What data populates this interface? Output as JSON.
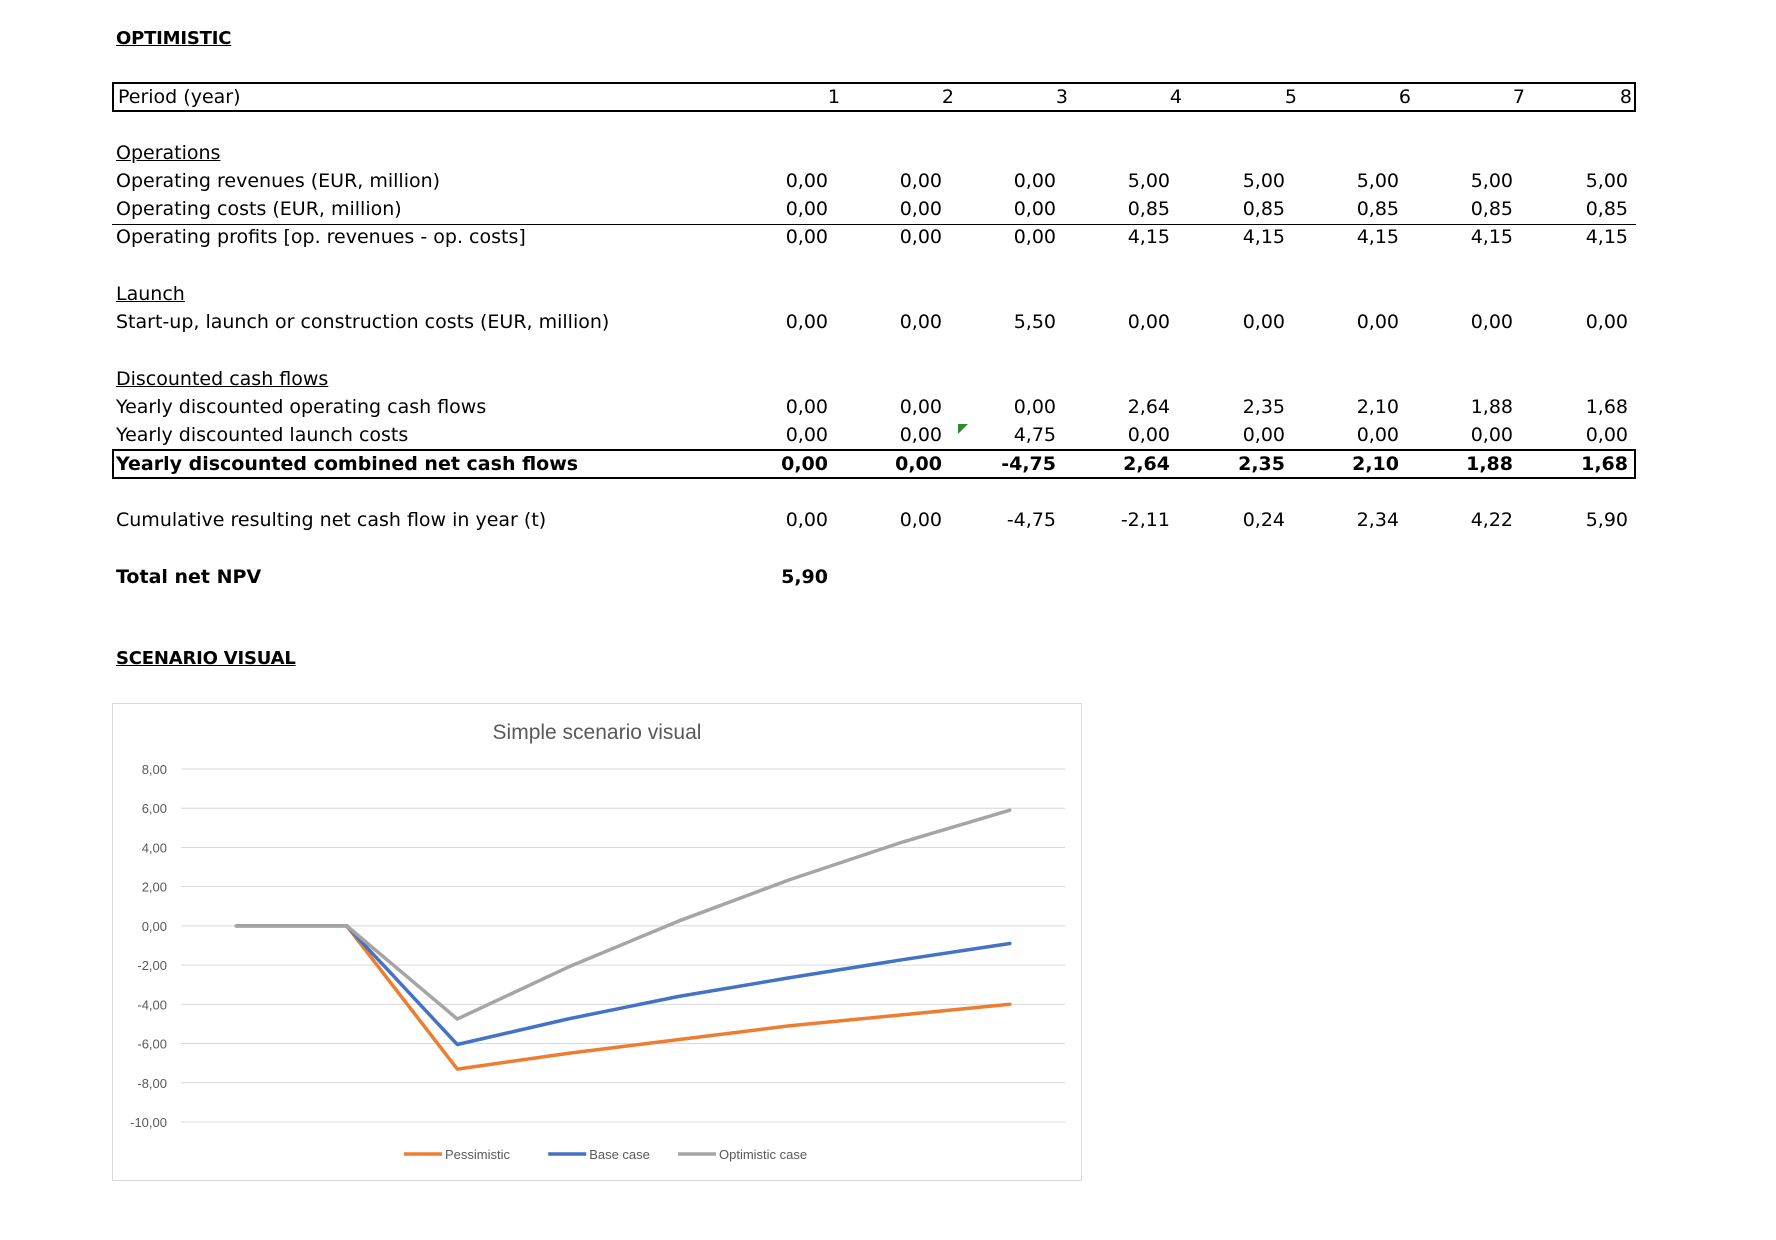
{
  "heading": "OPTIMISTIC",
  "period_row": {
    "label": "Period (year)",
    "values": [
      "1",
      "2",
      "3",
      "4",
      "5",
      "6",
      "7",
      "8"
    ]
  },
  "sections": {
    "operations": {
      "title": "Operations",
      "rows": [
        {
          "label": "Operating revenues (EUR, million)",
          "values": [
            "0,00",
            "0,00",
            "0,00",
            "5,00",
            "5,00",
            "5,00",
            "5,00",
            "5,00"
          ]
        },
        {
          "label": "Operating costs (EUR, million)",
          "values": [
            "0,00",
            "0,00",
            "0,00",
            "0,85",
            "0,85",
            "0,85",
            "0,85",
            "0,85"
          ]
        },
        {
          "label": "Operating profits [op. revenues - op. costs]",
          "values": [
            "0,00",
            "0,00",
            "0,00",
            "4,15",
            "4,15",
            "4,15",
            "4,15",
            "4,15"
          ]
        }
      ]
    },
    "launch": {
      "title": "Launch",
      "rows": [
        {
          "label": "Start-up, launch or construction costs (EUR, million)",
          "values": [
            "0,00",
            "0,00",
            "5,50",
            "0,00",
            "0,00",
            "0,00",
            "0,00",
            "0,00"
          ]
        }
      ]
    },
    "dcf": {
      "title": "Discounted cash flows",
      "rows": [
        {
          "label": "Yearly discounted operating cash flows",
          "values": [
            "0,00",
            "0,00",
            "0,00",
            "2,64",
            "2,35",
            "2,10",
            "1,88",
            "1,68"
          ]
        },
        {
          "label": "Yearly discounted launch costs",
          "values": [
            "0,00",
            "0,00",
            "4,75",
            "0,00",
            "0,00",
            "0,00",
            "0,00",
            "0,00"
          ]
        },
        {
          "label": "Yearly discounted combined net cash flows",
          "values": [
            "0,00",
            "0,00",
            "-4,75",
            "2,64",
            "2,35",
            "2,10",
            "1,88",
            "1,68"
          ]
        }
      ]
    },
    "cumulative": {
      "label": "Cumulative resulting net cash flow in year (t)",
      "values": [
        "0,00",
        "0,00",
        "-4,75",
        "-2,11",
        "0,24",
        "2,34",
        "4,22",
        "5,90"
      ]
    },
    "npv": {
      "label": "Total net NPV",
      "value": "5,90"
    }
  },
  "scenario_heading": "SCENARIO VISUAL",
  "colors": {
    "pessimistic": "#ed7d31",
    "base": "#4472c4",
    "optimistic": "#a5a5a5",
    "grid": "#d9d9d9",
    "comment_flag": "#2e8b2e"
  },
  "chart_data": {
    "type": "line",
    "title": "Simple scenario visual",
    "x": [
      1,
      2,
      3,
      4,
      5,
      6,
      7,
      8
    ],
    "ylim": [
      -10,
      8
    ],
    "yticks": [
      "8,00",
      "6,00",
      "4,00",
      "2,00",
      "0,00",
      "-2,00",
      "-4,00",
      "-6,00",
      "-8,00",
      "-10,00"
    ],
    "grid": true,
    "legend": "bottom",
    "series": [
      {
        "name": "Pessimistic",
        "color": "#ed7d31",
        "values": [
          0,
          0,
          -7.3,
          -6.5,
          -5.8,
          -5.1,
          -4.55,
          -4.0
        ]
      },
      {
        "name": "Base case",
        "color": "#4472c4",
        "values": [
          0,
          0,
          -6.05,
          -4.75,
          -3.6,
          -2.65,
          -1.75,
          -0.9
        ]
      },
      {
        "name": "Optimistic case",
        "color": "#a5a5a5",
        "values": [
          0,
          0,
          -4.75,
          -2.11,
          0.24,
          2.34,
          4.22,
          5.9
        ]
      }
    ]
  }
}
